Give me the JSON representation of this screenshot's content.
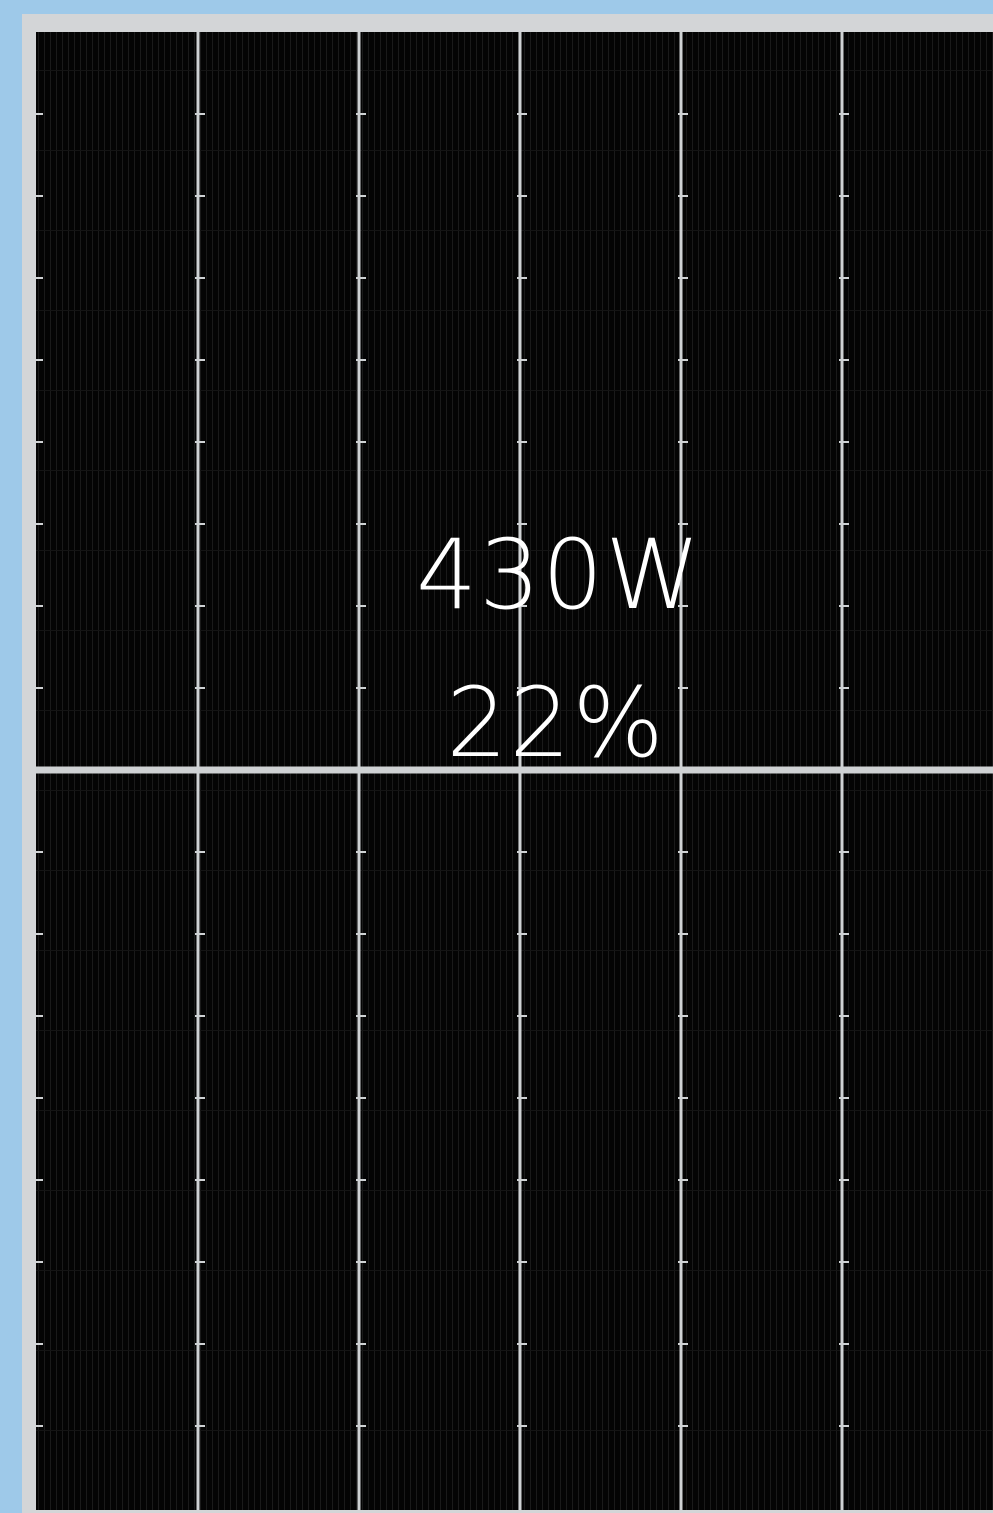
{
  "photo": {
    "subject_icon": "solar-panel-icon",
    "colors": {
      "background": "#9ec9e9",
      "frame": "#d3d5d7",
      "cells": "#040404",
      "busbar": "#cfd2d4",
      "text": "#ffffff"
    }
  },
  "specs": {
    "power": "430W",
    "efficiency": "22%"
  }
}
